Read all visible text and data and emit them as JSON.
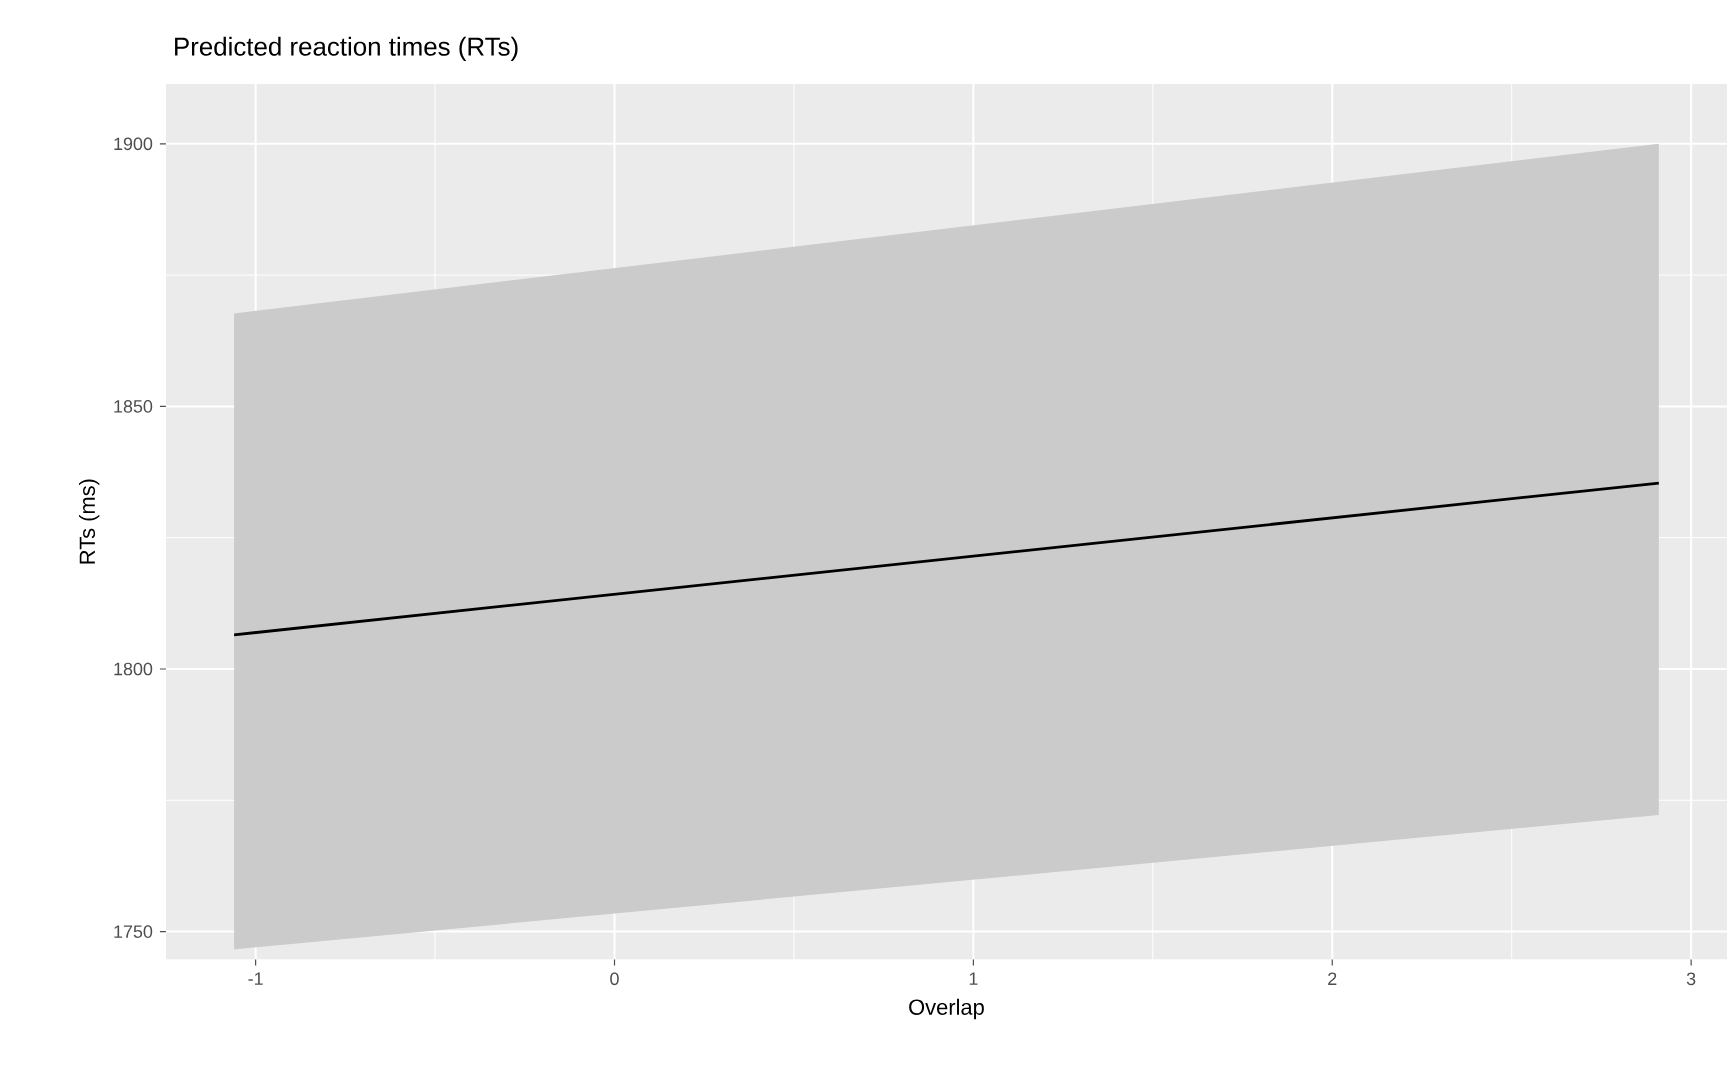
{
  "chart_data": {
    "type": "line",
    "title": "Predicted reaction times (RTs)",
    "xlabel": "Overlap",
    "ylabel": "RTs (ms)",
    "x": [
      -1.06,
      2.91
    ],
    "series": [
      {
        "color": "#000000",
        "values": [
          1806.5,
          1835.4
        ],
        "lower": [
          1746.6,
          1772.2
        ],
        "upper": [
          1867.7,
          1900
        ]
      }
    ],
    "xlim": [
      -1.25,
      3.1
    ],
    "ylim": [
      1744.7,
      1911.4
    ],
    "xticks": [
      -1,
      0,
      1,
      2,
      3
    ],
    "yticks": [
      1750,
      1800,
      1850,
      1900
    ],
    "grid": true
  }
}
